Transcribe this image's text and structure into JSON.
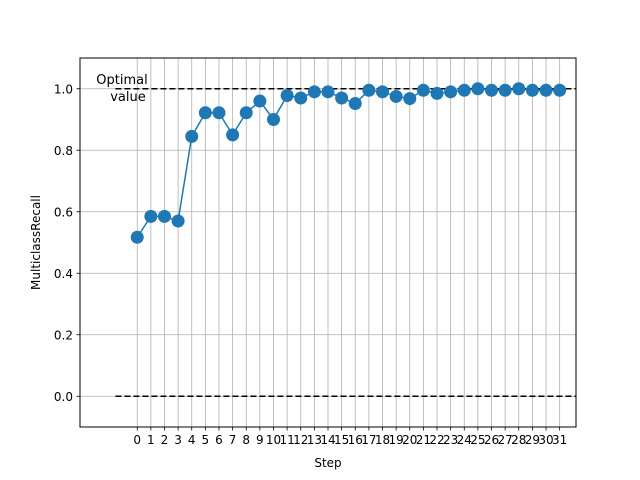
{
  "chart_data": {
    "type": "line",
    "title": "",
    "xlabel": "Step",
    "ylabel": "MulticlassRecall",
    "grid": true,
    "x": [
      0,
      1,
      2,
      3,
      4,
      5,
      6,
      7,
      8,
      9,
      10,
      11,
      12,
      13,
      14,
      15,
      16,
      17,
      18,
      19,
      20,
      21,
      22,
      23,
      24,
      25,
      26,
      27,
      28,
      29,
      30,
      31
    ],
    "series": [
      {
        "color": "#1f77b4",
        "values": [
          0.517,
          0.585,
          0.585,
          0.57,
          0.845,
          0.922,
          0.922,
          0.85,
          0.922,
          0.96,
          0.9,
          0.978,
          0.97,
          0.99,
          0.99,
          0.97,
          0.952,
          0.995,
          0.99,
          0.975,
          0.968,
          0.995,
          0.985,
          0.99,
          0.995,
          1.0,
          0.995,
          0.995,
          1.0,
          0.995,
          0.995,
          0.995
        ]
      }
    ],
    "reference_lines": [
      {
        "y": 1.0,
        "style": "dashed",
        "color": "#000000"
      },
      {
        "y": 0.0,
        "style": "dashed",
        "color": "#000000"
      }
    ],
    "annotation": {
      "line1": "Optimal",
      "line2": "value"
    },
    "xlim": [
      -4.2,
      32.2
    ],
    "ylim": [
      -0.1,
      1.1
    ],
    "yticks": [
      0.0,
      0.2,
      0.4,
      0.6,
      0.8,
      1.0
    ],
    "ytick_labels": [
      "0.0",
      "0.2",
      "0.4",
      "0.6",
      "0.8",
      "1.0"
    ],
    "xtick_labels": [
      "0",
      "1",
      "2",
      "3",
      "4",
      "5",
      "6",
      "7",
      "8",
      "9",
      "10",
      "11",
      "12",
      "13",
      "14",
      "15",
      "16",
      "17",
      "18",
      "19",
      "20",
      "21",
      "22",
      "23",
      "24",
      "25",
      "26",
      "27",
      "28",
      "29",
      "30",
      "31"
    ]
  }
}
